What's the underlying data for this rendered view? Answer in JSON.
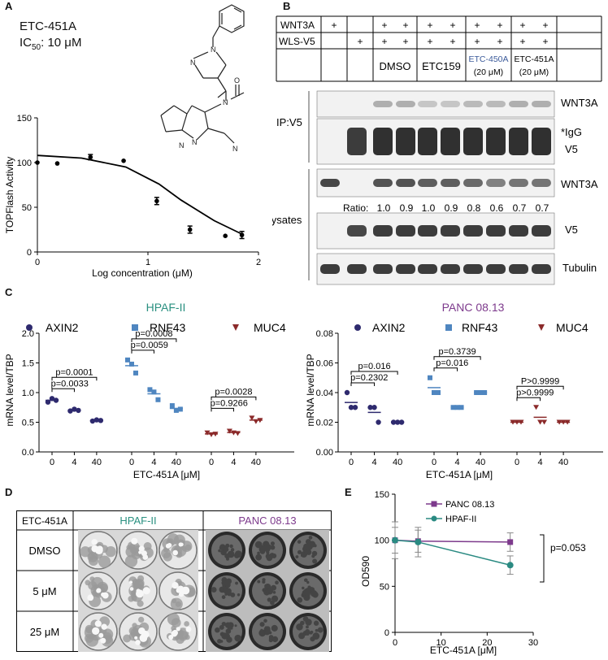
{
  "panel_labels": {
    "a": "A",
    "b": "B",
    "c": "C",
    "d": "D",
    "e": "E"
  },
  "panel_a": {
    "compound": "ETC-451A",
    "ic50_prefix": "IC",
    "ic50_sub": "50",
    "ic50_value": ": 10 μM",
    "ylabel": "TOPFlash Activity",
    "xlabel": "Log concentration (μM)",
    "structure_atoms": [
      "N",
      "N",
      "N",
      "O",
      "N",
      "N",
      "N"
    ]
  },
  "panel_b": {
    "row_labels": [
      "WNT3A",
      "WLS-V5"
    ],
    "plus": "+",
    "conditions": [
      "DMSO",
      "ETC159",
      "ETC-450A",
      "ETC-451A"
    ],
    "dose": "(20 μM)",
    "ip_label": "IP:V5",
    "lys_label": "Lysates",
    "blot_labels": [
      "WNT3A",
      "*IgG",
      "V5",
      "WNT3A",
      "V5",
      "Tubulin"
    ],
    "ratio_label": "Ratio:",
    "ratios": [
      "1.0",
      "0.9",
      "1.0",
      "0.9",
      "0.8",
      "0.6",
      "0.7",
      "0.7"
    ],
    "colors": {
      "etc450": "#3b5a9a"
    }
  },
  "panel_c": {
    "left_title": "HPAF-II",
    "right_title": "PANC 08.13",
    "legend": [
      "AXIN2",
      "RNF43",
      "MUC4"
    ],
    "ylabel": "mRNA level/TBP",
    "xlabel": "ETC-451A [μM]",
    "left_pvals": [
      "p=0.0001",
      "p=0.0033",
      "p=0.0008",
      "p=0.0059",
      "p=0.0028",
      "p=0.9266"
    ],
    "right_pvals": [
      "p=0.016",
      "p=0.2302",
      "p=0.3739",
      "p=0.016",
      "P>0.9999",
      "p>0.9999"
    ],
    "colors": {
      "axin2": "#2e2a6e",
      "rnf43": "#4f86c0",
      "muc4": "#8b2a2a",
      "hpaf": "#2a9080",
      "panc": "#7d3a8c"
    }
  },
  "panel_d": {
    "header": "ETC-451A",
    "cells": [
      "HPAF-II",
      "PANC 08.13"
    ],
    "rows": [
      "DMSO",
      "5 μM",
      "25 μM"
    ]
  },
  "panel_e": {
    "ylabel": "OD590",
    "xlabel": "ETC-451A [μM]",
    "legend": [
      "PANC 08.13",
      "HPAF-II"
    ],
    "pvalue": "p=0.053",
    "colors": {
      "panc": "#7d3a8c",
      "hpaf": "#2a8a82"
    }
  },
  "chart_data": [
    {
      "type": "scatter",
      "panel": "A",
      "xlabel": "Log concentration (μM)",
      "ylabel": "TOPFlash Activity",
      "xlim": [
        0,
        2
      ],
      "ylim": [
        0,
        150
      ],
      "xticks": [
        0,
        1,
        2
      ],
      "yticks": [
        0,
        50,
        100,
        150
      ],
      "points": [
        [
          0,
          100
        ],
        [
          0.18,
          99
        ],
        [
          0.48,
          106
        ],
        [
          0.78,
          102
        ],
        [
          1.08,
          57
        ],
        [
          1.38,
          25
        ],
        [
          1.7,
          18
        ],
        [
          1.85,
          19
        ]
      ],
      "error": [
        0,
        0,
        3,
        0,
        4,
        4,
        0,
        4
      ],
      "curve": [
        [
          0,
          108
        ],
        [
          0.4,
          105
        ],
        [
          0.8,
          95
        ],
        [
          1.1,
          76
        ],
        [
          1.3,
          58
        ],
        [
          1.6,
          35
        ],
        [
          1.85,
          20
        ]
      ]
    },
    {
      "type": "scatter",
      "panel": "C-left",
      "title": "HPAF-II",
      "ylabel": "mRNA level/TBP",
      "xlabel": "ETC-451A [μM]",
      "ylim": [
        0,
        2.0
      ],
      "yticks": [
        0,
        0.5,
        1.0,
        1.5,
        2.0
      ],
      "categories": [
        "0",
        "4",
        "40"
      ],
      "series": [
        {
          "name": "AXIN2",
          "values": [
            [
              0.84,
              0.9,
              0.87
            ],
            [
              0.69,
              0.72,
              0.7
            ],
            [
              0.52,
              0.54,
              0.53
            ]
          ]
        },
        {
          "name": "RNF43",
          "values": [
            [
              1.55,
              1.48,
              1.33
            ],
            [
              1.05,
              1.01,
              0.88
            ],
            [
              0.78,
              0.7,
              0.72
            ]
          ]
        },
        {
          "name": "MUC4",
          "values": [
            [
              0.32,
              0.29,
              0.3
            ],
            [
              0.35,
              0.32,
              0.31
            ],
            [
              0.57,
              0.51,
              0.53
            ]
          ]
        }
      ]
    },
    {
      "type": "scatter",
      "panel": "C-right",
      "title": "PANC 08.13",
      "ylabel": "mRNA level/TBP",
      "xlabel": "ETC-451A [μM]",
      "ylim": [
        0,
        0.08
      ],
      "yticks": [
        0,
        0.02,
        0.04,
        0.06,
        0.08
      ],
      "categories": [
        "0",
        "4",
        "40"
      ],
      "series": [
        {
          "name": "AXIN2",
          "values": [
            [
              0.04,
              0.03,
              0.03
            ],
            [
              0.03,
              0.03,
              0.02
            ],
            [
              0.02,
              0.02,
              0.02
            ]
          ]
        },
        {
          "name": "RNF43",
          "values": [
            [
              0.05,
              0.04,
              0.04
            ],
            [
              0.03,
              0.03,
              0.03
            ],
            [
              0.04,
              0.04,
              0.04
            ]
          ]
        },
        {
          "name": "MUC4",
          "values": [
            [
              0.02,
              0.02,
              0.02
            ],
            [
              0.03,
              0.02,
              0.02
            ],
            [
              0.02,
              0.02,
              0.02
            ]
          ]
        }
      ]
    },
    {
      "type": "line",
      "panel": "E",
      "xlabel": "ETC-451A [μM]",
      "ylabel": "OD590",
      "xlim": [
        0,
        30
      ],
      "ylim": [
        0,
        150
      ],
      "xticks": [
        0,
        10,
        20,
        30
      ],
      "yticks": [
        0,
        50,
        100,
        150
      ],
      "series": [
        {
          "name": "PANC 08.13",
          "x": [
            0,
            5,
            25
          ],
          "y": [
            100,
            99,
            98
          ],
          "err": [
            14,
            12,
            10
          ]
        },
        {
          "name": "HPAF-II",
          "x": [
            0,
            5,
            25
          ],
          "y": [
            100,
            98,
            73
          ],
          "err": [
            20,
            16,
            10
          ]
        }
      ]
    }
  ]
}
